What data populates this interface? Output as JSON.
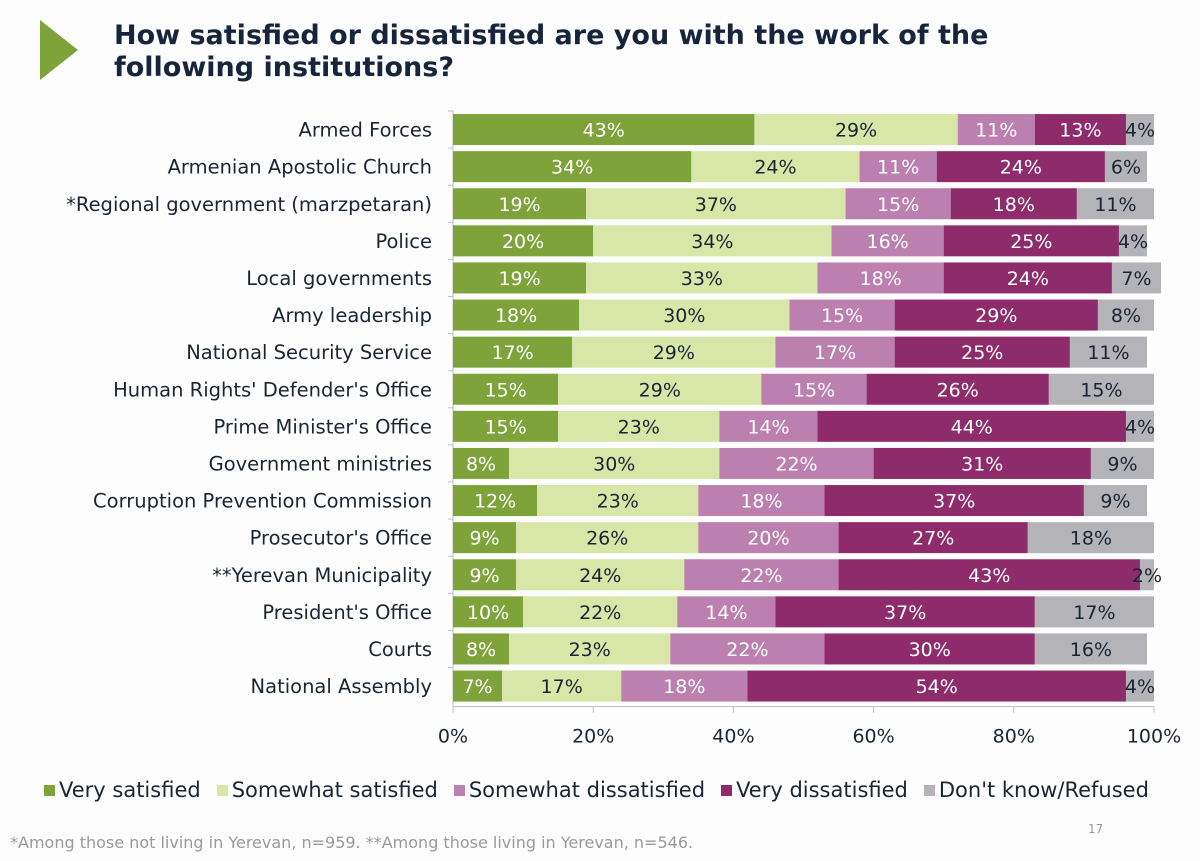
{
  "title": "How satisfied or dissatisfied are you with the work of the following institutions?",
  "footnote": "*Among those not living in Yerevan, n=959.   **Among those living in Yerevan, n=546.",
  "page_number": "17",
  "chart_data": {
    "type": "bar",
    "orientation": "horizontal",
    "stacked": true,
    "title": "How satisfied or dissatisfied are you with the work of the following institutions?",
    "xlabel": "",
    "ylabel": "",
    "xlim": [
      0,
      100
    ],
    "x_ticks": [
      "0%",
      "20%",
      "40%",
      "60%",
      "80%",
      "100%"
    ],
    "legend_position": "bottom",
    "categories": [
      "Armed Forces",
      "Armenian Apostolic Church",
      "*Regional government (marzpetaran)",
      "Police",
      "Local governments",
      "Army leadership",
      "National Security Service",
      "Human Rights' Defender's Office",
      "Prime Minister's Office",
      "Government ministries",
      "Corruption Prevention Commission",
      "Prosecutor's Office",
      "**Yerevan Municipality",
      "President's Office",
      "Courts",
      "National Assembly"
    ],
    "series": [
      {
        "name": "Very satisfied",
        "color": "#7ea33a",
        "label_color": "#ffffff",
        "values": [
          43,
          34,
          19,
          20,
          19,
          18,
          17,
          15,
          15,
          8,
          12,
          9,
          9,
          10,
          8,
          7
        ]
      },
      {
        "name": "Somewhat satisfied",
        "color": "#d8e6a8",
        "label_color": "#1a2533",
        "values": [
          29,
          24,
          37,
          34,
          33,
          30,
          29,
          29,
          23,
          30,
          23,
          26,
          24,
          22,
          23,
          17
        ]
      },
      {
        "name": "Somewhat dissatisfied",
        "color": "#bb7fb0",
        "label_color": "#ffffff",
        "values": [
          11,
          11,
          15,
          16,
          18,
          15,
          17,
          15,
          14,
          22,
          18,
          20,
          22,
          14,
          22,
          18
        ]
      },
      {
        "name": "Very dissatisfied",
        "color": "#8e2c6b",
        "label_color": "#ffffff",
        "values": [
          13,
          24,
          18,
          25,
          24,
          29,
          25,
          26,
          44,
          31,
          37,
          27,
          43,
          37,
          30,
          54
        ]
      },
      {
        "name": "Don't know/Refused",
        "color": "#b4b4b8",
        "label_color": "#1a2533",
        "values": [
          4,
          6,
          11,
          4,
          7,
          8,
          11,
          15,
          4,
          9,
          9,
          18,
          2,
          17,
          16,
          4
        ]
      }
    ]
  }
}
